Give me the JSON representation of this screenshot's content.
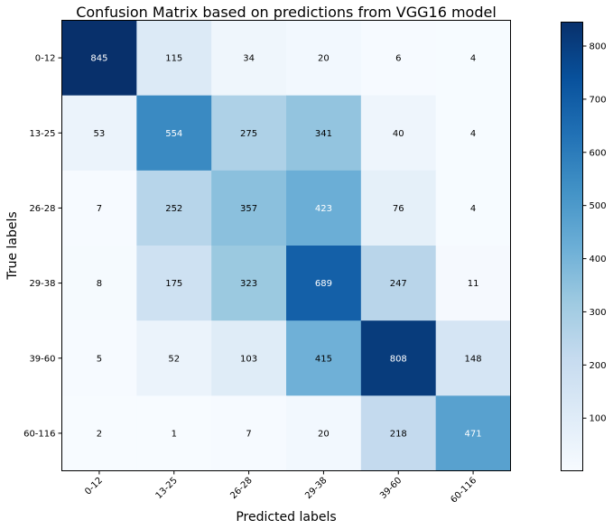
{
  "chart_data": {
    "type": "heatmap",
    "title": "Confusion Matrix based on predictions from VGG16 model",
    "xlabel": "Predicted labels",
    "ylabel": "True labels",
    "x_categories": [
      "0-12",
      "13-25",
      "26-28",
      "29-38",
      "39-60",
      "60-116"
    ],
    "y_categories": [
      "0-12",
      "13-25",
      "26-28",
      "29-38",
      "39-60",
      "60-116"
    ],
    "values": [
      [
        845,
        115,
        34,
        20,
        6,
        4
      ],
      [
        53,
        554,
        275,
        341,
        40,
        4
      ],
      [
        7,
        252,
        357,
        423,
        76,
        4
      ],
      [
        8,
        175,
        323,
        689,
        247,
        11
      ],
      [
        5,
        52,
        103,
        415,
        808,
        148
      ],
      [
        2,
        1,
        7,
        20,
        218,
        471
      ]
    ],
    "colormap": "Blues",
    "color_range": [
      1,
      845
    ],
    "colorbar_ticks": [
      100,
      200,
      300,
      400,
      500,
      600,
      700,
      800
    ],
    "colors": {
      "cmap_low": "#f7fbff",
      "cmap_high": "#08306b",
      "text_dark": "#000000",
      "text_light": "#ffffff"
    }
  }
}
